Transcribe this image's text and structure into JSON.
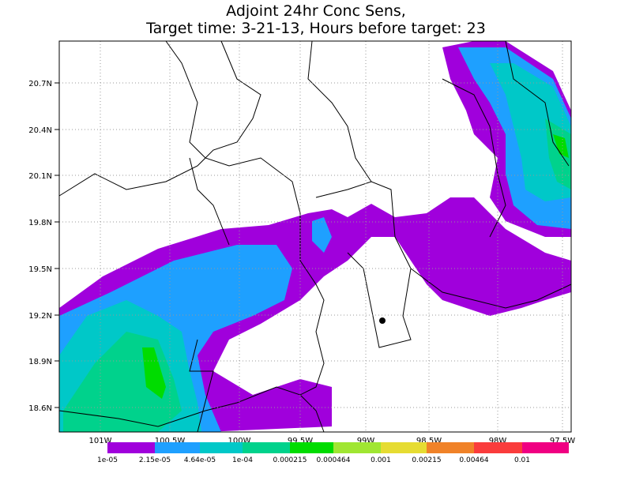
{
  "title": {
    "line1": "Adjoint 24hr Conc Sens,",
    "line2": "Target time: 3-21-13, Hours before target: 23"
  },
  "map": {
    "lat_labels": [
      "20.7N",
      "20.4N",
      "20.1N",
      "19.8N",
      "19.5N",
      "19.2N",
      "18.9N",
      "18.6N"
    ],
    "lon_labels": [
      "101W",
      "100.5W",
      "100W",
      "99.5W",
      "99W",
      "98.5W",
      "98W",
      "97.5W"
    ]
  },
  "legend": {
    "labels": [
      "1e-05",
      "2.15e-05",
      "4.64e-05",
      "1e-04",
      "0.000215",
      "0.000464",
      "0.001",
      "0.00215",
      "0.00464",
      "0.01"
    ],
    "colors": [
      "#a000dc",
      "#1ea0ff",
      "#00c8c8",
      "#00d28c",
      "#00dc00",
      "#a0e632",
      "#e6dc32",
      "#f08228",
      "#fa3c3c",
      "#f00082"
    ]
  }
}
